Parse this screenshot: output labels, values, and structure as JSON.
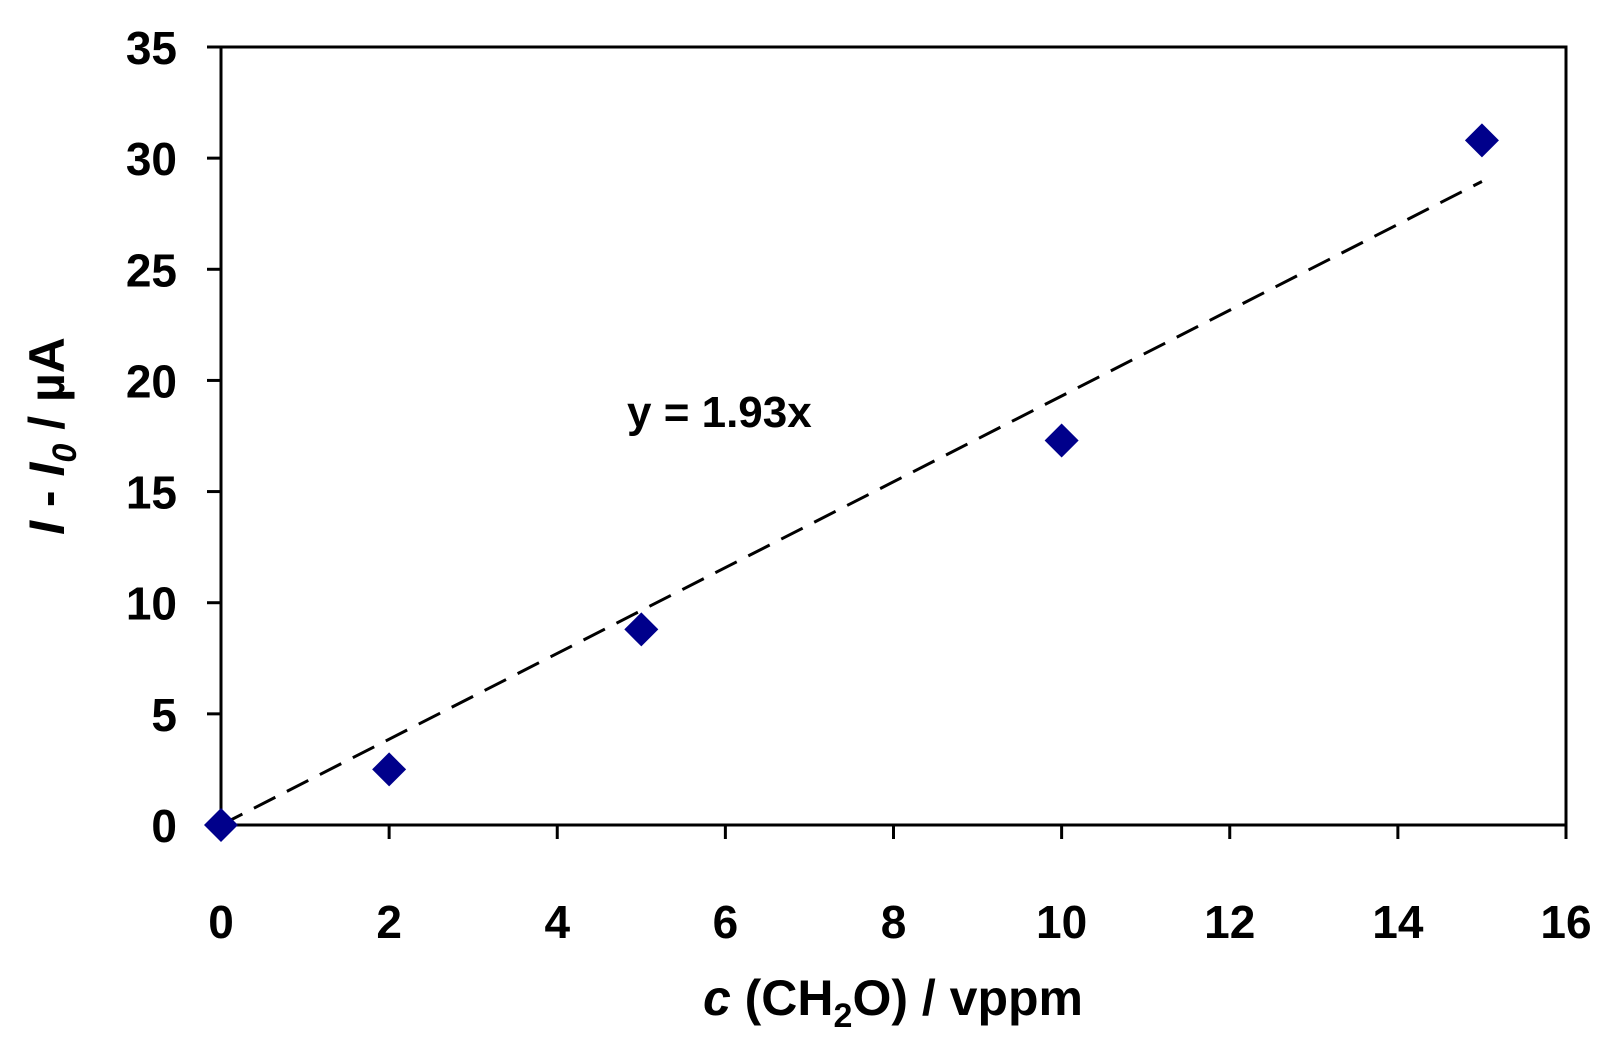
{
  "chart_data": {
    "type": "scatter",
    "x_title": {
      "var": "c",
      "rest_a": " (CH",
      "sub": "2",
      "rest_b": "O) / vppm"
    },
    "y_title": {
      "var1": "I",
      "mid": " - ",
      "var2": "I",
      "sub": "0",
      "unit": " / µA"
    },
    "xlim": [
      0,
      16
    ],
    "ylim": [
      0,
      35
    ],
    "x_ticks": [
      "0",
      "2",
      "4",
      "6",
      "8",
      "10",
      "12",
      "14",
      "16"
    ],
    "y_ticks": [
      "0",
      "5",
      "10",
      "15",
      "20",
      "25",
      "30",
      "35"
    ],
    "series": [
      {
        "marker": "diamond",
        "color": "#00008B",
        "points": [
          {
            "x": 0,
            "y": 0
          },
          {
            "x": 2,
            "y": 2.5
          },
          {
            "x": 5,
            "y": 8.8
          },
          {
            "x": 10,
            "y": 17.3
          },
          {
            "x": 15,
            "y": 30.8
          }
        ]
      }
    ],
    "trendline": {
      "slope": 1.93,
      "x_range": [
        0,
        15
      ],
      "style": "dashed",
      "color": "#000000",
      "equation": "y = 1.93x"
    },
    "grid": false,
    "legend": "none"
  }
}
